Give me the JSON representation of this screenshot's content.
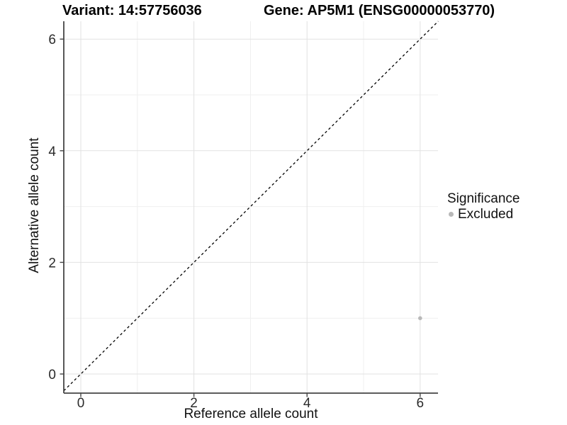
{
  "chart_data": {
    "type": "scatter",
    "title_left": "Variant: 14:57756036",
    "title_right": "Gene: AP5M1 (ENSG00000053770)",
    "xlabel": "Reference allele count",
    "ylabel": "Alternative allele count",
    "xlim": [
      -0.3,
      6.32
    ],
    "ylim": [
      -0.34,
      6.32
    ],
    "x_ticks": [
      0,
      2,
      4,
      6
    ],
    "y_ticks": [
      0,
      2,
      4,
      6
    ],
    "x_minor_ticks": [
      1,
      3,
      5
    ],
    "y_minor_ticks": [
      1,
      3,
      5
    ],
    "grid": "major+minor",
    "series": [
      {
        "name": "Excluded",
        "color": "#b8b8b8",
        "points": [
          {
            "x": 6,
            "y": 1
          }
        ]
      }
    ],
    "reference_line": {
      "kind": "identity y=x",
      "style": "dashed",
      "color": "#000000"
    },
    "legend": {
      "title": "Significance",
      "position": "right",
      "entries": [
        {
          "label": "Excluded",
          "color": "#b8b8b8"
        }
      ]
    }
  },
  "style": {
    "background": "#ffffff",
    "grid_major_color": "#e2e2e2",
    "grid_minor_color": "#efefef",
    "axis_line_color": "#454545",
    "tick_mark_color": "#454545",
    "tick_label_color": "#2b2b2b",
    "point_color": "#b8b8b8",
    "dashed_line_color": "#000000"
  }
}
